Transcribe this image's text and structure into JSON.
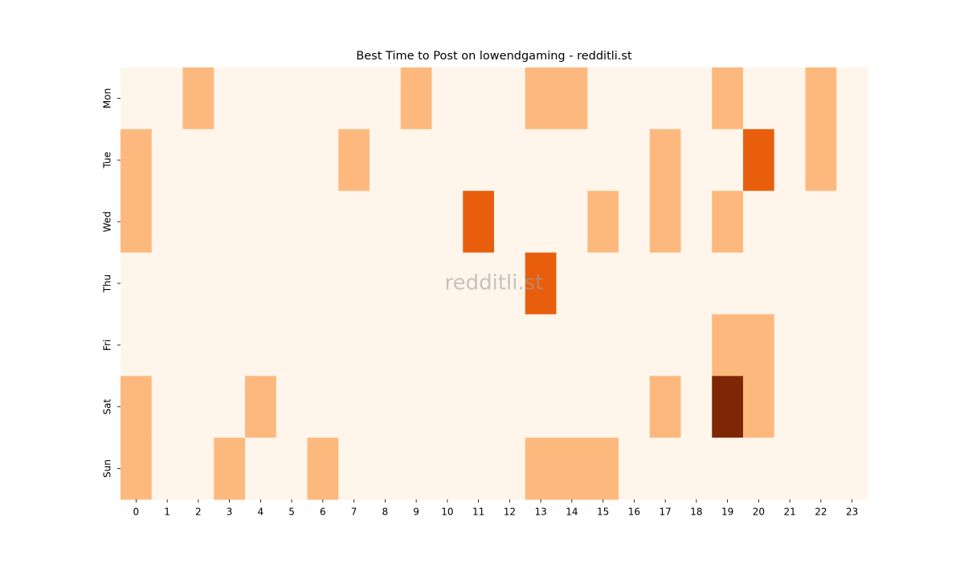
{
  "chart_data": {
    "type": "heatmap",
    "title": "Best Time to Post on lowendgaming - redditli.st",
    "watermark": "redditli.st",
    "x_categories": [
      "0",
      "1",
      "2",
      "3",
      "4",
      "5",
      "6",
      "7",
      "8",
      "9",
      "10",
      "11",
      "12",
      "13",
      "14",
      "15",
      "16",
      "17",
      "18",
      "19",
      "20",
      "21",
      "22",
      "23"
    ],
    "y_categories": [
      "Mon",
      "Tue",
      "Wed",
      "Thu",
      "Fri",
      "Sat",
      "Sun"
    ],
    "values": [
      [
        0,
        0,
        1,
        0,
        0,
        0,
        0,
        0,
        0,
        1,
        0,
        0,
        0,
        1,
        1,
        0,
        0,
        0,
        0,
        1,
        0,
        0,
        1,
        0
      ],
      [
        1,
        0,
        0,
        0,
        0,
        0,
        0,
        1,
        0,
        0,
        0,
        0,
        0,
        0,
        0,
        0,
        0,
        1,
        0,
        0,
        2,
        0,
        1,
        0
      ],
      [
        1,
        0,
        0,
        0,
        0,
        0,
        0,
        0,
        0,
        0,
        0,
        2,
        0,
        0,
        0,
        1,
        0,
        1,
        0,
        1,
        0,
        0,
        0,
        0
      ],
      [
        0,
        0,
        0,
        0,
        0,
        0,
        0,
        0,
        0,
        0,
        0,
        0,
        0,
        2,
        0,
        0,
        0,
        0,
        0,
        0,
        0,
        0,
        0,
        0
      ],
      [
        0,
        0,
        0,
        0,
        0,
        0,
        0,
        0,
        0,
        0,
        0,
        0,
        0,
        0,
        0,
        0,
        0,
        0,
        0,
        1,
        1,
        0,
        0,
        0
      ],
      [
        1,
        0,
        0,
        0,
        1,
        0,
        0,
        0,
        0,
        0,
        0,
        0,
        0,
        0,
        0,
        0,
        0,
        1,
        0,
        3,
        1,
        0,
        0,
        0
      ],
      [
        1,
        0,
        0,
        1,
        0,
        0,
        1,
        0,
        0,
        0,
        0,
        0,
        0,
        1,
        1,
        1,
        0,
        0,
        0,
        0,
        0,
        0,
        0,
        0
      ]
    ],
    "colorscale": [
      "#fff5eb",
      "#fdb97d",
      "#e95e0d",
      "#7f2704"
    ]
  }
}
